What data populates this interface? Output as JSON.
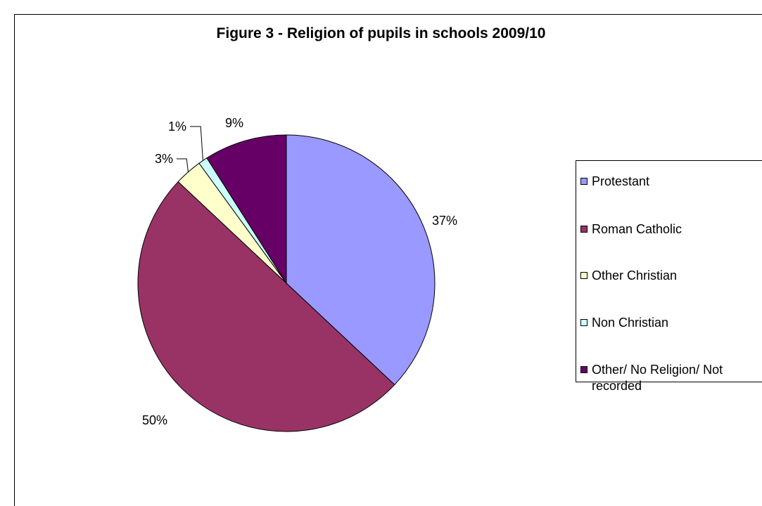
{
  "chart_data": {
    "type": "pie",
    "title": "Figure 3 - Religion of pupils in schools 2009/10",
    "slices": [
      {
        "name": "Protestant",
        "value": 37,
        "label": "37%",
        "color": "#9999ff"
      },
      {
        "name": "Roman Catholic",
        "value": 50,
        "label": "50%",
        "color": "#993366"
      },
      {
        "name": "Other Christian",
        "value": 3,
        "label": "3%",
        "color": "#ffffcc"
      },
      {
        "name": "Non Christian",
        "value": 1,
        "label": "1%",
        "color": "#ccffff"
      },
      {
        "name": "Other/ No Religion/ Not recorded",
        "value": 9,
        "label": "9%",
        "color": "#660066"
      }
    ],
    "legend_position": "right"
  }
}
